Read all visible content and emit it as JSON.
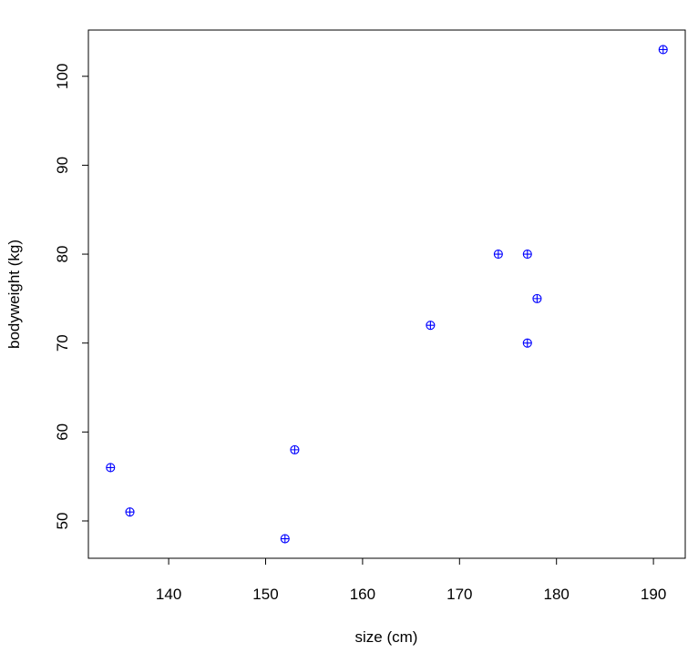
{
  "chart_data": {
    "type": "scatter",
    "x_label": "size (cm)",
    "y_label": "bodyweight (kg)",
    "x": [
      134,
      136,
      152,
      153,
      167,
      174,
      177,
      178,
      177,
      191
    ],
    "values": [
      56,
      51,
      48,
      58,
      72,
      80,
      80,
      75,
      70,
      103
    ],
    "color": "#0000ff",
    "xlim": [
      131.72,
      193.28
    ],
    "xticks": [
      140,
      150,
      160,
      170,
      180,
      190
    ],
    "ylim": [
      45.8,
      105.2
    ],
    "yticks": [
      50,
      60,
      70,
      80,
      90,
      100
    ]
  }
}
